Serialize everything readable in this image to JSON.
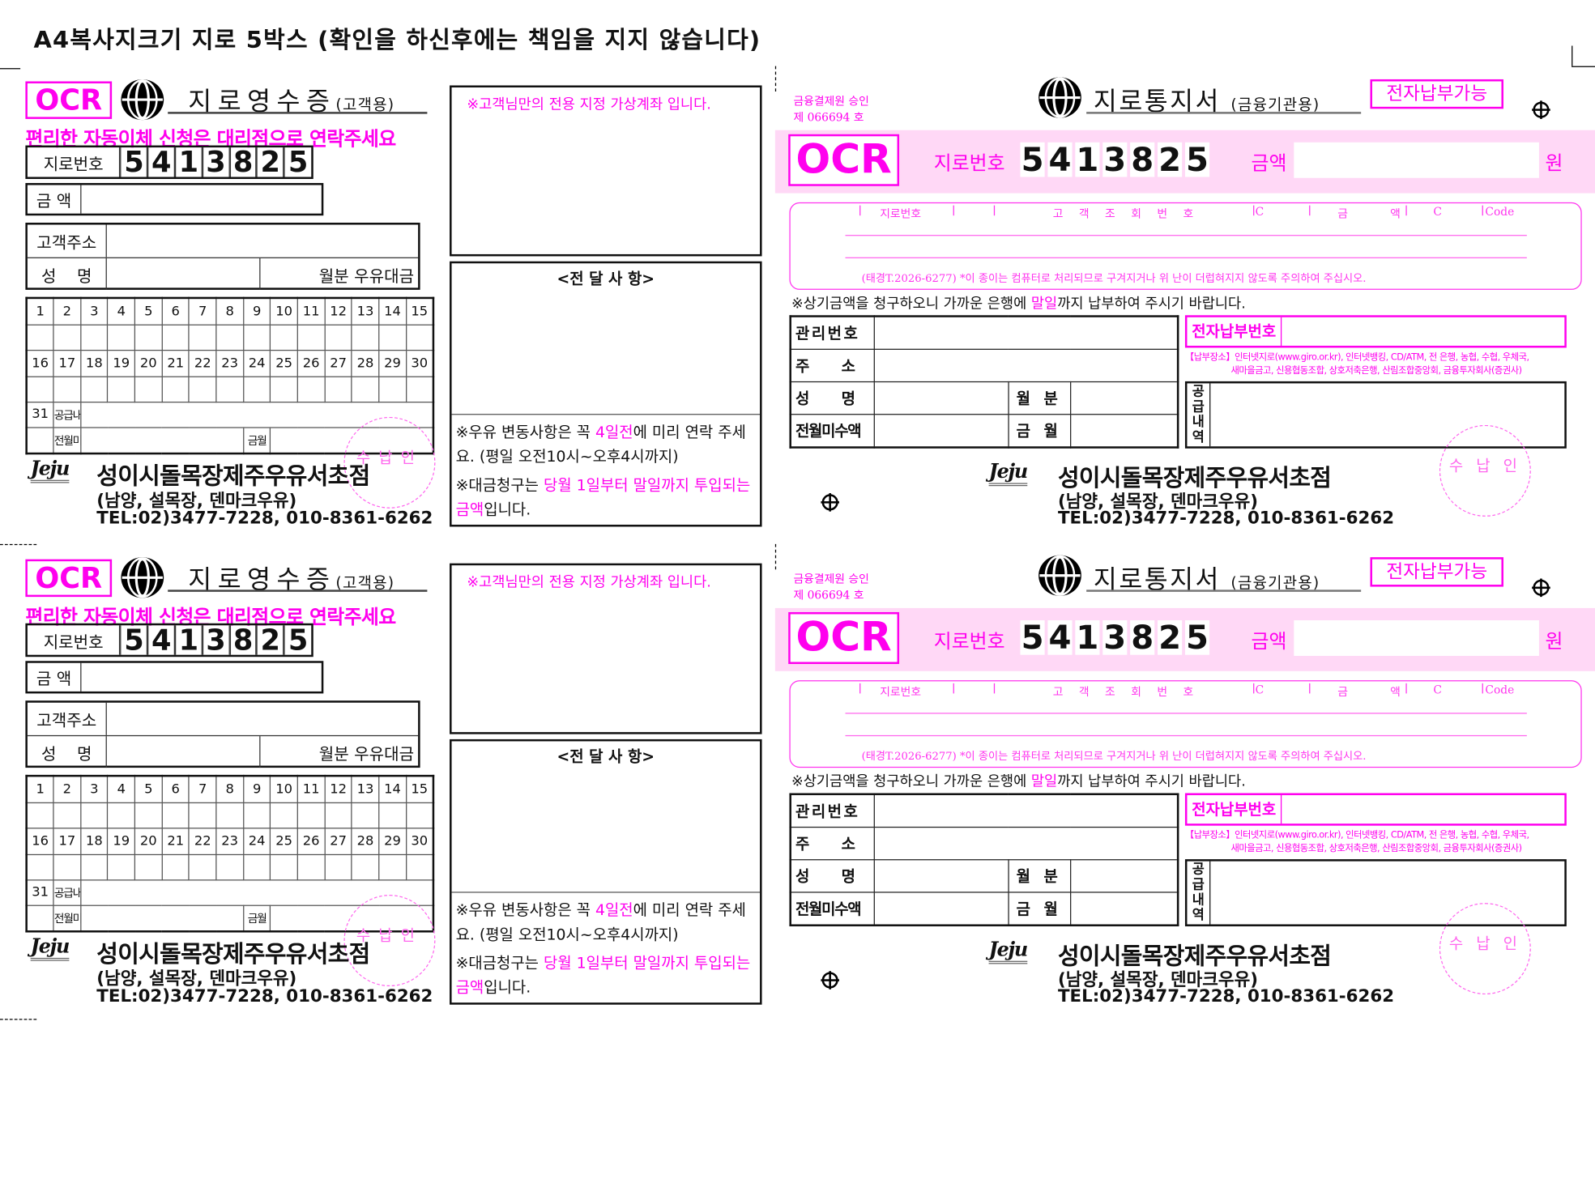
{
  "page_title": "A4복사지크기 지로 5박스 (확인을 하신후에는 책임을 지지 않습니다)",
  "colors": {
    "accent_magenta": "#ff00ee",
    "band_pink": "#ffd8f6",
    "ink": "#111111"
  },
  "receipt": {
    "ocr": "OCR",
    "logo_icon": "giro-logo-icon",
    "title": "지로영수증",
    "title_sub": "(고객용)",
    "promo": "편리한 자동이체 신청은 대리점으로 연락주세요",
    "giro_label": "지로번호",
    "giro_digits": [
      "5",
      "4",
      "1",
      "3",
      "8",
      "2",
      "5"
    ],
    "amount_label": "금 액",
    "address_label": "고객주소",
    "name_label": "성    명",
    "monthly_label": "월분 우유대금",
    "calendar": {
      "days_row1": [
        "1",
        "2",
        "3",
        "4",
        "5",
        "6",
        "7",
        "8",
        "9",
        "10",
        "11",
        "12",
        "13",
        "14",
        "15"
      ],
      "days_row2": [
        "16",
        "17",
        "18",
        "19",
        "20",
        "21",
        "22",
        "23",
        "24",
        "25",
        "26",
        "27",
        "28",
        "29",
        "30"
      ],
      "day31": "31",
      "supply_label": "공급내역",
      "prev_unpaid_label": "전월미수",
      "this_month_label": "금월"
    },
    "stamp": "수납인"
  },
  "memo": {
    "virtual_account": "※고객님만의 전용 지정 가상계좌 입니다.",
    "title": "<전 달 사 항>",
    "note1_a": "※우유 변동사항은 꼭 ",
    "note1_b": "4일전",
    "note1_c": "에 미리 연락 주세요. (평일 오전10시~오후4시까지)",
    "note2_a": "※대금청구는 ",
    "note2_b": "당월 1일부터 말일까지 투입되는 금액",
    "note2_c": "입니다."
  },
  "notice": {
    "approval_line1": "금융결제원 승인",
    "approval_line2": "제 066694 호",
    "title": "지로통지서",
    "title_sub": "(금융기관용)",
    "epay_badge": "전자납부가능",
    "ocr": "OCR",
    "giro_label": "지로번호",
    "giro_digits": [
      "5",
      "4",
      "1",
      "3",
      "8",
      "2",
      "5"
    ],
    "amount_label": "금액",
    "won": "원",
    "ocr_headers": {
      "giro": "지로번호",
      "customer_ref": "고 객 조 회 번 호",
      "c1": "C",
      "amount": "금     액",
      "c2": "C",
      "code": "Code"
    },
    "ocr_footer": "(태경T.2026-6277) *이 종이는 컴퓨터로 처리되므로 구겨지거나 위 난이 더럽혀지지 않도록 주의하여 주십시오.",
    "instruction_a": "※상기금액을 청구하오니 가까운 은행에 ",
    "instruction_b": "말일",
    "instruction_c": "까지 납부하여 주시기 바랍니다.",
    "mgmt_no_label": "관리번호",
    "address_label": "주      소",
    "name_label": "성      명",
    "month_label": "월 분",
    "prev_unpaid_label": "전월미수액",
    "this_month_label": "금 월",
    "epay_no_label": "전자납부번호",
    "pay_places_line1": "【납부장소】인터넷지로(www.giro.or.kr), 인터넷뱅킹, CD/ATM, 전 은행, 농협, 수협, 우체국,",
    "pay_places_line2": "새마을금고, 신용협동조합, 상호저축은행, 산림조합중앙회, 금융투자회사(증권사)",
    "supply_label": "공급내역",
    "stamp": "수 납 인"
  },
  "store": {
    "logo_text": "Jeju",
    "name": "성이시돌목장제주우유서초점",
    "brands": "(남양, 설목장, 덴마크우유)",
    "tel": "TEL:02)3477-7228, 010-8361-6262"
  }
}
